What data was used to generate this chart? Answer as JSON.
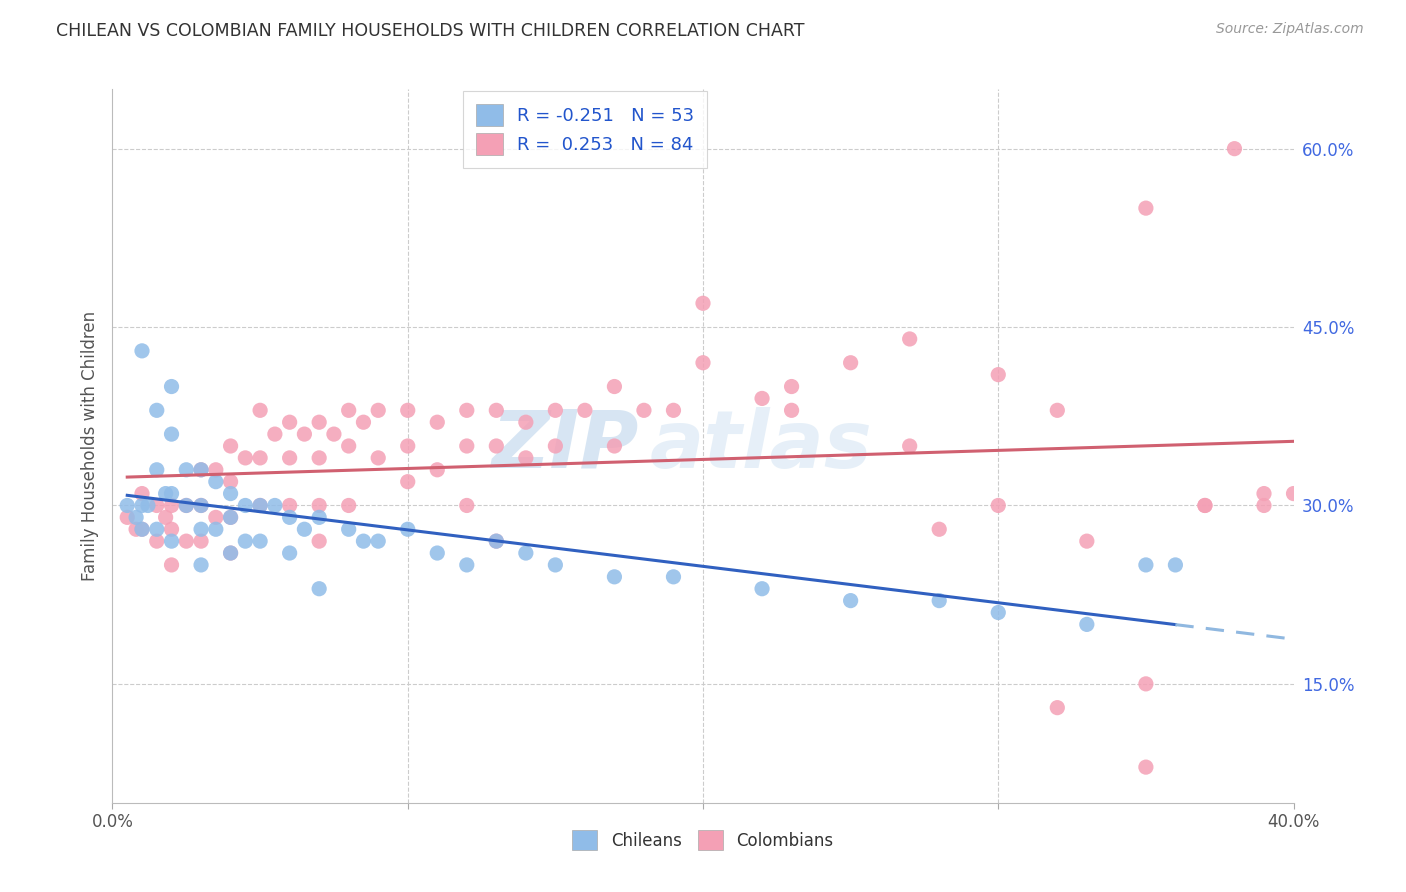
{
  "title": "CHILEAN VS COLOMBIAN FAMILY HOUSEHOLDS WITH CHILDREN CORRELATION CHART",
  "source": "Source: ZipAtlas.com",
  "ylabel": "Family Households with Children",
  "x_min": 0.0,
  "x_max": 0.4,
  "y_min": 0.05,
  "y_max": 0.65,
  "y_tick_labels_right": [
    "60.0%",
    "45.0%",
    "30.0%",
    "15.0%"
  ],
  "y_tick_vals_right": [
    0.6,
    0.45,
    0.3,
    0.15
  ],
  "chilean_color": "#90bce8",
  "colombian_color": "#f4a0b5",
  "trend_chilean_color": "#3060c0",
  "trend_colombian_color": "#d06070",
  "trend_chilean_dashed_color": "#90b8e0",
  "legend_chilean_label": "R = -0.251   N = 53",
  "legend_colombian_label": "R =  0.253   N = 84",
  "legend_bottom_chilean": "Chileans",
  "legend_bottom_colombian": "Colombians",
  "R_chilean": -0.251,
  "N_chilean": 53,
  "R_colombian": 0.253,
  "N_colombian": 84,
  "watermark_zip": "ZIP",
  "watermark_atlas": "atlas",
  "chilean_x": [
    0.005,
    0.008,
    0.01,
    0.01,
    0.01,
    0.012,
    0.015,
    0.015,
    0.015,
    0.018,
    0.02,
    0.02,
    0.02,
    0.02,
    0.025,
    0.025,
    0.03,
    0.03,
    0.03,
    0.03,
    0.035,
    0.035,
    0.04,
    0.04,
    0.04,
    0.045,
    0.045,
    0.05,
    0.05,
    0.055,
    0.06,
    0.06,
    0.065,
    0.07,
    0.07,
    0.08,
    0.085,
    0.09,
    0.1,
    0.11,
    0.12,
    0.13,
    0.14,
    0.15,
    0.17,
    0.19,
    0.22,
    0.25,
    0.28,
    0.3,
    0.33,
    0.35,
    0.36
  ],
  "chilean_y": [
    0.3,
    0.29,
    0.43,
    0.3,
    0.28,
    0.3,
    0.38,
    0.33,
    0.28,
    0.31,
    0.4,
    0.36,
    0.31,
    0.27,
    0.33,
    0.3,
    0.33,
    0.3,
    0.28,
    0.25,
    0.32,
    0.28,
    0.31,
    0.29,
    0.26,
    0.3,
    0.27,
    0.3,
    0.27,
    0.3,
    0.29,
    0.26,
    0.28,
    0.29,
    0.23,
    0.28,
    0.27,
    0.27,
    0.28,
    0.26,
    0.25,
    0.27,
    0.26,
    0.25,
    0.24,
    0.24,
    0.23,
    0.22,
    0.22,
    0.21,
    0.2,
    0.25,
    0.25
  ],
  "colombian_x": [
    0.005,
    0.008,
    0.01,
    0.01,
    0.015,
    0.015,
    0.018,
    0.02,
    0.02,
    0.02,
    0.025,
    0.025,
    0.03,
    0.03,
    0.03,
    0.035,
    0.035,
    0.04,
    0.04,
    0.04,
    0.04,
    0.045,
    0.05,
    0.05,
    0.05,
    0.055,
    0.06,
    0.06,
    0.06,
    0.065,
    0.07,
    0.07,
    0.07,
    0.07,
    0.075,
    0.08,
    0.08,
    0.08,
    0.085,
    0.09,
    0.09,
    0.1,
    0.1,
    0.1,
    0.11,
    0.11,
    0.12,
    0.12,
    0.12,
    0.13,
    0.13,
    0.13,
    0.14,
    0.14,
    0.15,
    0.15,
    0.16,
    0.17,
    0.17,
    0.18,
    0.19,
    0.2,
    0.22,
    0.23,
    0.25,
    0.27,
    0.28,
    0.3,
    0.32,
    0.33,
    0.35,
    0.37,
    0.38,
    0.39,
    0.2,
    0.23,
    0.27,
    0.3,
    0.32,
    0.35,
    0.37,
    0.39,
    0.4,
    0.35
  ],
  "colombian_y": [
    0.29,
    0.28,
    0.31,
    0.28,
    0.3,
    0.27,
    0.29,
    0.3,
    0.28,
    0.25,
    0.3,
    0.27,
    0.33,
    0.3,
    0.27,
    0.33,
    0.29,
    0.35,
    0.32,
    0.29,
    0.26,
    0.34,
    0.38,
    0.34,
    0.3,
    0.36,
    0.37,
    0.34,
    0.3,
    0.36,
    0.37,
    0.34,
    0.3,
    0.27,
    0.36,
    0.38,
    0.35,
    0.3,
    0.37,
    0.38,
    0.34,
    0.38,
    0.35,
    0.32,
    0.37,
    0.33,
    0.38,
    0.35,
    0.3,
    0.38,
    0.35,
    0.27,
    0.37,
    0.34,
    0.38,
    0.35,
    0.38,
    0.4,
    0.35,
    0.38,
    0.38,
    0.42,
    0.39,
    0.4,
    0.42,
    0.44,
    0.28,
    0.41,
    0.38,
    0.27,
    0.55,
    0.3,
    0.6,
    0.3,
    0.47,
    0.38,
    0.35,
    0.3,
    0.13,
    0.15,
    0.3,
    0.31,
    0.31,
    0.08
  ]
}
